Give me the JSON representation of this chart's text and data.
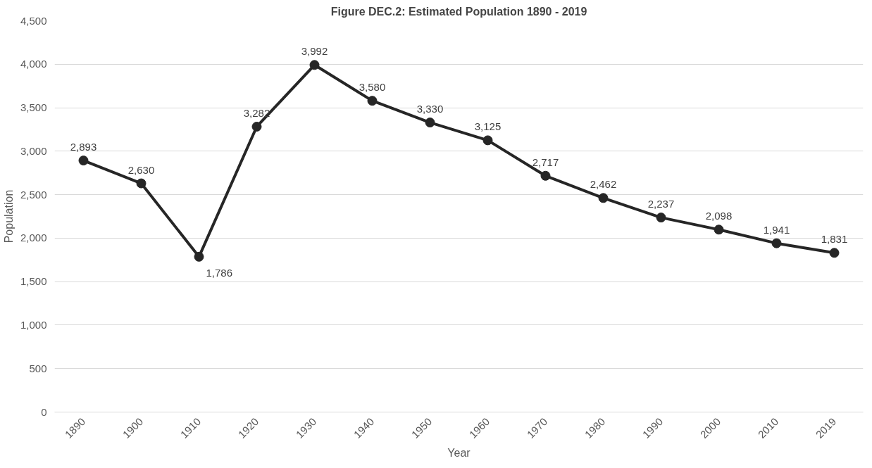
{
  "chart_data": {
    "type": "line",
    "title": "Figure DEC.2: Estimated Population 1890 - 2019",
    "xlabel": "Year",
    "ylabel": "Population",
    "categories": [
      "1890",
      "1900",
      "1910",
      "1920",
      "1930",
      "1940",
      "1950",
      "1960",
      "1970",
      "1980",
      "1990",
      "2000",
      "2010",
      "2019"
    ],
    "series": [
      {
        "color": "#262626",
        "values": [
          2893,
          2630,
          1786,
          3282,
          3992,
          3580,
          3330,
          3125,
          2717,
          2462,
          2237,
          2098,
          1941,
          1831
        ],
        "value_labels": [
          "2,893",
          "2,630",
          "1,786",
          "3,282",
          "3,992",
          "3,580",
          "3,330",
          "3,125",
          "2,717",
          "2,462",
          "2,237",
          "2,098",
          "1,941",
          "1,831"
        ]
      }
    ],
    "ylim": [
      0,
      4500
    ],
    "yticks": [
      {
        "value": 0,
        "label": "0"
      },
      {
        "value": 500,
        "label": "500"
      },
      {
        "value": 1000,
        "label": "1,000"
      },
      {
        "value": 1500,
        "label": "1,500"
      },
      {
        "value": 2000,
        "label": "2,000"
      },
      {
        "value": 2500,
        "label": "2,500"
      },
      {
        "value": 3000,
        "label": "3,000"
      },
      {
        "value": 3500,
        "label": "3,500"
      },
      {
        "value": 4000,
        "label": "4,000"
      },
      {
        "value": 4500,
        "label": "4,500"
      }
    ],
    "grid": "y",
    "marker": "circle",
    "line_style": "solid"
  }
}
